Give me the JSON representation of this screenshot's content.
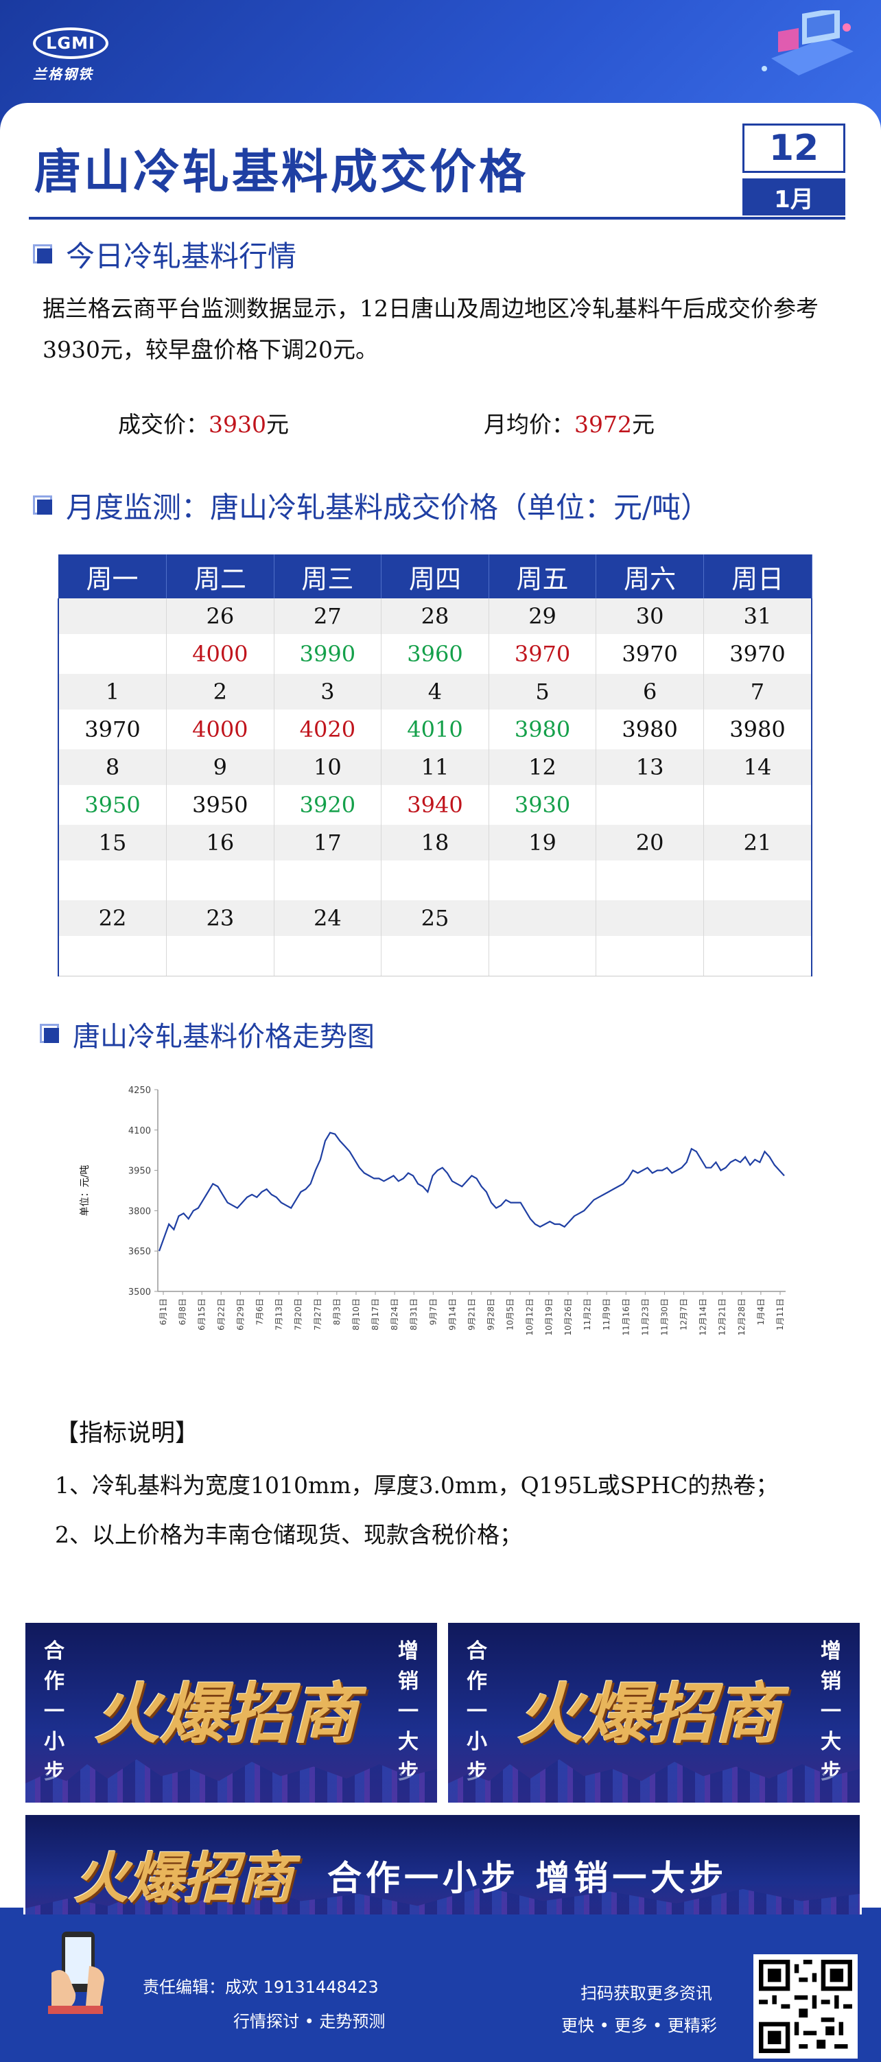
{
  "brand": {
    "logo_mark": "LGMI",
    "logo_name": "兰格钢铁"
  },
  "title": "唐山冷轧基料成交价格",
  "date": {
    "day": "12",
    "month": "1月"
  },
  "section_today": {
    "heading": "今日冷轧基料行情",
    "paragraph": "据兰格云商平台监测数据显示，12日唐山及周边地区冷轧基料午后成交价参考3930元，较早盘价格下调20元。",
    "deal_label": "成交价：",
    "deal_value": "3930",
    "avg_label": "月均价：",
    "avg_value": "3972",
    "unit": "元"
  },
  "section_month": {
    "heading": "月度监测：唐山冷轧基料成交价格（单位：元/吨）",
    "weekdays": [
      "周一",
      "周二",
      "周三",
      "周四",
      "周五",
      "周六",
      "周日"
    ],
    "rows": [
      {
        "dates": [
          "",
          "26",
          "27",
          "28",
          "29",
          "30",
          "31"
        ],
        "prices": [
          "",
          "4000",
          "3990",
          "3960",
          "3970",
          "3970",
          "3970"
        ],
        "trend": [
          "",
          "up",
          "down",
          "down",
          "up",
          "",
          ""
        ]
      },
      {
        "dates": [
          "1",
          "2",
          "3",
          "4",
          "5",
          "6",
          "7"
        ],
        "prices": [
          "3970",
          "4000",
          "4020",
          "4010",
          "3980",
          "3980",
          "3980"
        ],
        "trend": [
          "",
          "up",
          "up",
          "down",
          "down",
          "",
          ""
        ]
      },
      {
        "dates": [
          "8",
          "9",
          "10",
          "11",
          "12",
          "13",
          "14"
        ],
        "prices": [
          "3950",
          "3950",
          "3920",
          "3940",
          "3930",
          "",
          ""
        ],
        "trend": [
          "down",
          "",
          "down",
          "up",
          "down",
          "",
          ""
        ]
      },
      {
        "dates": [
          "15",
          "16",
          "17",
          "18",
          "19",
          "20",
          "21"
        ],
        "prices": [
          "",
          "",
          "",
          "",
          "",
          "",
          ""
        ],
        "trend": [
          "",
          "",
          "",
          "",
          "",
          "",
          ""
        ]
      },
      {
        "dates": [
          "22",
          "23",
          "24",
          "25",
          "",
          "",
          ""
        ],
        "prices": [
          "",
          "",
          "",
          "",
          "",
          "",
          ""
        ],
        "trend": [
          "",
          "",
          "",
          "",
          "",
          "",
          ""
        ]
      }
    ],
    "colors": {
      "up": "#c0141c",
      "down": "#14a04a"
    }
  },
  "section_chart": {
    "heading": "唐山冷轧基料价格走势图"
  },
  "chart_data": {
    "type": "line",
    "ylabel": "单位：元/吨",
    "ylim": [
      3500,
      4250
    ],
    "yticks": [
      3500,
      3650,
      3800,
      3950,
      4100,
      4250
    ],
    "xticks": [
      "6月1日",
      "6月8日",
      "6月15日",
      "6月22日",
      "6月29日",
      "7月6日",
      "7月13日",
      "7月20日",
      "7月27日",
      "8月3日",
      "8月10日",
      "8月17日",
      "8月24日",
      "8月31日",
      "9月7日",
      "9月14日",
      "9月21日",
      "9月28日",
      "10月5日",
      "10月12日",
      "10月19日",
      "10月26日",
      "11月2日",
      "11月9日",
      "11月16日",
      "11月23日",
      "11月30日",
      "12月7日",
      "12月14日",
      "12月21日",
      "12月28日",
      "1月4日",
      "1月11日"
    ],
    "series": [
      {
        "color": "#1f3fa3",
        "values": [
          3650,
          3700,
          3750,
          3730,
          3780,
          3790,
          3770,
          3800,
          3810,
          3840,
          3870,
          3900,
          3890,
          3860,
          3830,
          3820,
          3810,
          3830,
          3850,
          3860,
          3850,
          3870,
          3880,
          3860,
          3850,
          3830,
          3820,
          3810,
          3840,
          3870,
          3880,
          3900,
          3950,
          3990,
          4060,
          4090,
          4085,
          4060,
          4040,
          4020,
          3990,
          3960,
          3940,
          3930,
          3920,
          3920,
          3910,
          3920,
          3930,
          3910,
          3920,
          3940,
          3930,
          3900,
          3890,
          3870,
          3930,
          3950,
          3960,
          3940,
          3910,
          3900,
          3890,
          3910,
          3930,
          3920,
          3890,
          3870,
          3830,
          3810,
          3820,
          3840,
          3830,
          3830,
          3830,
          3800,
          3770,
          3750,
          3740,
          3750,
          3760,
          3750,
          3750,
          3740,
          3760,
          3780,
          3790,
          3800,
          3820,
          3840,
          3850,
          3860,
          3870,
          3880,
          3890,
          3900,
          3920,
          3950,
          3940,
          3950,
          3960,
          3940,
          3950,
          3950,
          3960,
          3940,
          3950,
          3960,
          3980,
          4030,
          4020,
          3990,
          3960,
          3960,
          3980,
          3950,
          3960,
          3980,
          3990,
          3980,
          4000,
          3970,
          3990,
          3980,
          4020,
          4000,
          3970,
          3950,
          3930
        ]
      }
    ]
  },
  "notes": {
    "title": "【指标说明】",
    "items": [
      "1、冷轧基料为宽度1010mm，厚度3.0mm，Q195L或SPHC的热卷；",
      "2、以上价格为丰南仓储现货、现款含税价格；"
    ]
  },
  "ads": {
    "main": "火爆招商",
    "left_side": "合作一小步",
    "right_side": "增销一大步",
    "slogan": "合作一小步  增销一大步"
  },
  "footer": {
    "editor": "责任编辑：成欢    19131448423",
    "tagline": "行情探讨 • 走势预测",
    "qr_text": "扫码获取更多资讯",
    "qr_sub": "更快 • 更多 • 更精彩"
  }
}
